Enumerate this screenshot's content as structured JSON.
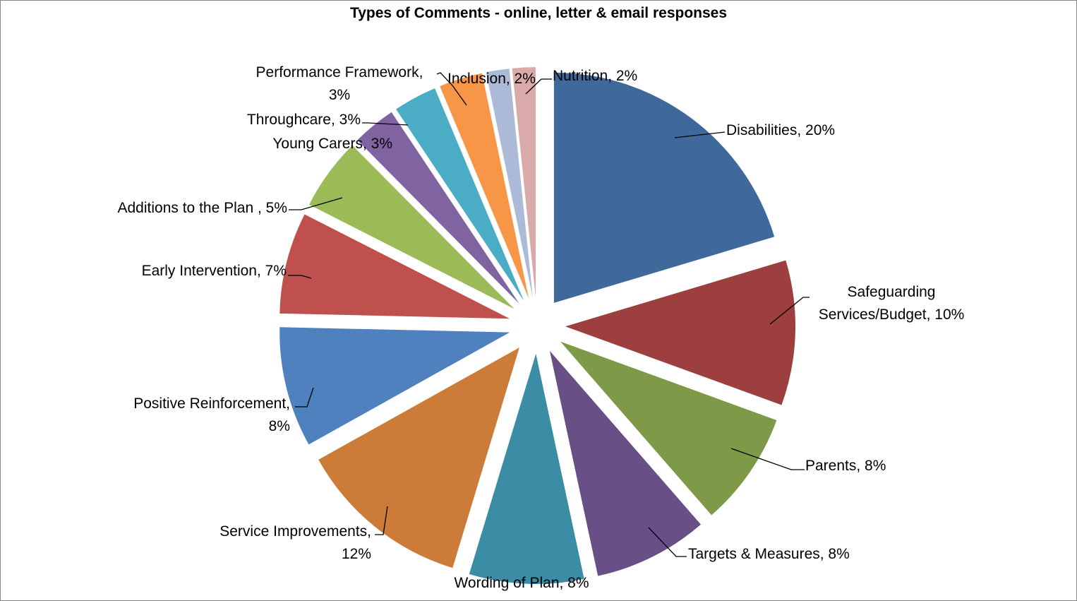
{
  "chart_data": {
    "type": "pie",
    "title": "Types of Comments - online, letter & email responses",
    "slices": [
      {
        "category": "Disabilities",
        "percent_label": "20%",
        "value": 20.0,
        "color": "#3F689B",
        "label_lines": [
          "Disabilities, 20%"
        ]
      },
      {
        "category": "Safeguarding Services/Budget",
        "percent_label": "10%",
        "value": 10.0,
        "color": "#9C3F3E",
        "label_lines": [
          "Safeguarding",
          "Services/Budget, 10%"
        ]
      },
      {
        "category": "Parents",
        "percent_label": "8%",
        "value": 7.9,
        "color": "#7E9A49",
        "label_lines": [
          "Parents, 8%"
        ]
      },
      {
        "category": "Targets & Measures",
        "percent_label": "8%",
        "value": 7.9,
        "color": "#684F86",
        "label_lines": [
          "Targets & Measures, 8%"
        ]
      },
      {
        "category": "Wording of Plan",
        "percent_label": "8%",
        "value": 7.9,
        "color": "#3B8CA5",
        "label_lines": [
          "Wording of Plan, 8%"
        ]
      },
      {
        "category": "Service Improvements",
        "percent_label": "12%",
        "value": 12.0,
        "color": "#CD7B39",
        "label_lines": [
          "Service Improvements,",
          "12%"
        ]
      },
      {
        "category": "Positive Reinforcement",
        "percent_label": "8%",
        "value": 8.3,
        "color": "#4E81BD",
        "label_lines": [
          "Positive Reinforcement,",
          "8%"
        ]
      },
      {
        "category": "Early Intervention",
        "percent_label": "7%",
        "value": 7.0,
        "color": "#C0504E",
        "label_lines": [
          "Early Intervention, 7%"
        ]
      },
      {
        "category": "Additions to the Plan ",
        "percent_label": "5%",
        "value": 5.0,
        "color": "#9BBB59",
        "label_lines": [
          "Additions to the Plan , 5%"
        ]
      },
      {
        "category": "Young Carers",
        "percent_label": "3%",
        "value": 3.0,
        "color": "#8064A2",
        "label_lines": [
          "Young Carers, 3%"
        ]
      },
      {
        "category": "Throughcare",
        "percent_label": "3%",
        "value": 3.0,
        "color": "#4BACC6",
        "label_lines": [
          "Throughcare, 3%"
        ]
      },
      {
        "category": "Performance Framework",
        "percent_label": "3%",
        "value": 3.0,
        "color": "#F79646",
        "label_lines": [
          "Performance Framework,",
          "3%"
        ]
      },
      {
        "category": "Inclusion",
        "percent_label": "2%",
        "value": 1.6,
        "color": "#AABAD7",
        "label_lines": [
          "Inclusion, 2%"
        ]
      },
      {
        "category": "Nutrition",
        "percent_label": "2%",
        "value": 1.6,
        "color": "#D9AAA9",
        "label_lines": [
          "Nutrition, 2%"
        ]
      }
    ],
    "legend": "none",
    "exploded": true
  }
}
